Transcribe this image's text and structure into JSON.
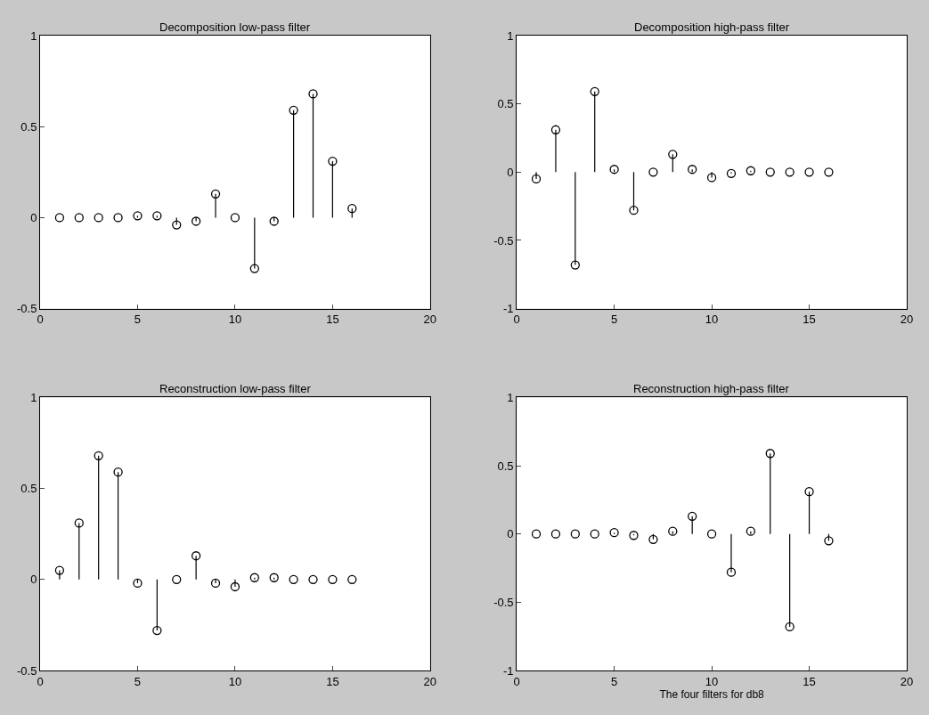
{
  "chart_data": [
    {
      "type": "lollipop",
      "title": "Decomposition low-pass filter",
      "x": [
        1,
        2,
        3,
        4,
        5,
        6,
        7,
        8,
        9,
        10,
        11,
        12,
        13,
        14,
        15,
        16
      ],
      "values": [
        0.0,
        0.0,
        0.0,
        0.0,
        0.01,
        0.01,
        -0.04,
        -0.02,
        0.13,
        0.0,
        -0.28,
        -0.02,
        0.59,
        0.68,
        0.31,
        0.05
      ],
      "color": "#000000",
      "marker": "circle",
      "xlim": [
        0,
        20
      ],
      "xticks": [
        0,
        5,
        10,
        15,
        20
      ],
      "ylim": [
        -0.5,
        1
      ],
      "yticks": [
        -0.5,
        0,
        0.5,
        1
      ]
    },
    {
      "type": "lollipop",
      "title": "Decomposition high-pass filter",
      "x": [
        1,
        2,
        3,
        4,
        5,
        6,
        7,
        8,
        9,
        10,
        11,
        12,
        13,
        14,
        15,
        16
      ],
      "values": [
        -0.05,
        0.31,
        -0.68,
        0.59,
        0.02,
        -0.28,
        0.0,
        0.13,
        0.02,
        -0.04,
        -0.01,
        0.01,
        0.0,
        0.0,
        0.0,
        0.0
      ],
      "color": "#000000",
      "marker": "circle",
      "xlim": [
        0,
        20
      ],
      "xticks": [
        0,
        5,
        10,
        15,
        20
      ],
      "ylim": [
        -1,
        1
      ],
      "yticks": [
        -1,
        -0.5,
        0,
        0.5,
        1
      ]
    },
    {
      "type": "lollipop",
      "title": "Reconstruction low-pass filter",
      "x": [
        1,
        2,
        3,
        4,
        5,
        6,
        7,
        8,
        9,
        10,
        11,
        12,
        13,
        14,
        15,
        16
      ],
      "values": [
        0.05,
        0.31,
        0.68,
        0.59,
        -0.02,
        -0.28,
        0.0,
        0.13,
        -0.02,
        -0.04,
        0.01,
        0.01,
        0.0,
        0.0,
        0.0,
        0.0
      ],
      "color": "#000000",
      "marker": "circle",
      "xlim": [
        0,
        20
      ],
      "xticks": [
        0,
        5,
        10,
        15,
        20
      ],
      "ylim": [
        -0.5,
        1
      ],
      "yticks": [
        -0.5,
        0,
        0.5,
        1
      ]
    },
    {
      "type": "lollipop",
      "title": "Reconstruction high-pass filter",
      "xlabel": "The four filters for db8",
      "x": [
        1,
        2,
        3,
        4,
        5,
        6,
        7,
        8,
        9,
        10,
        11,
        12,
        13,
        14,
        15,
        16
      ],
      "values": [
        0.0,
        0.0,
        0.0,
        0.0,
        0.01,
        -0.01,
        -0.04,
        0.02,
        0.13,
        0.0,
        -0.28,
        0.02,
        0.59,
        -0.68,
        0.31,
        -0.05
      ],
      "color": "#000000",
      "marker": "circle",
      "xlim": [
        0,
        20
      ],
      "xticks": [
        0,
        5,
        10,
        15,
        20
      ],
      "ylim": [
        -1,
        1
      ],
      "yticks": [
        -1,
        -0.5,
        0,
        0.5,
        1
      ]
    }
  ]
}
